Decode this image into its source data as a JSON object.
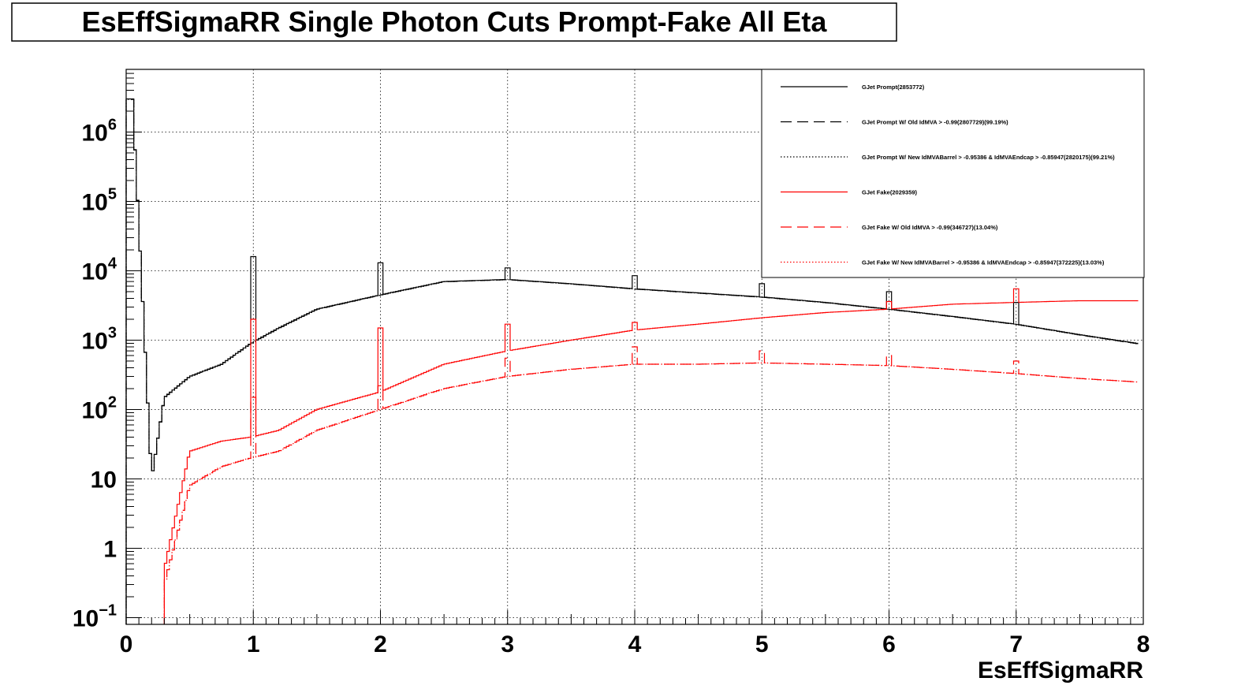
{
  "chart_data": {
    "type": "line",
    "title": "EsEffSigmaRR Single Photon Cuts Prompt-Fake All Eta",
    "xlabel": "EsEffSigmaRR",
    "ylabel": "",
    "xlim": [
      0,
      8
    ],
    "ylim": [
      0.08,
      8000000
    ],
    "y_scale": "log",
    "grid": true,
    "legend_position": "top-right",
    "x_ticks": [
      "0",
      "1",
      "2",
      "3",
      "4",
      "5",
      "6",
      "7",
      "8"
    ],
    "y_ticks": [
      {
        "value": 0.1,
        "base": "10",
        "exp": "−1"
      },
      {
        "value": 1,
        "base": "1",
        "exp": ""
      },
      {
        "value": 10,
        "base": "10",
        "exp": ""
      },
      {
        "value": 100,
        "base": "10",
        "exp": "2"
      },
      {
        "value": 1000,
        "base": "10",
        "exp": "3"
      },
      {
        "value": 10000,
        "base": "10",
        "exp": "4"
      },
      {
        "value": 100000,
        "base": "10",
        "exp": "5"
      },
      {
        "value": 1000000,
        "base": "10",
        "exp": "6"
      }
    ],
    "x": [
      0.05,
      0.2,
      0.3,
      0.5,
      0.75,
      0.98,
      1.2,
      1.5,
      2.0,
      2.5,
      3.0,
      3.5,
      4.0,
      4.5,
      5.0,
      5.5,
      6.0,
      6.5,
      7.0,
      7.5,
      7.95
    ],
    "series": [
      {
        "name": "GJet Prompt(2853772)",
        "color": "#000000",
        "dash": "solid",
        "values": [
          3000000,
          10,
          150,
          300,
          450,
          900,
          1500,
          2800,
          4500,
          7000,
          7500,
          6500,
          5500,
          4800,
          4200,
          3500,
          2800,
          2200,
          1700,
          1200,
          900
        ],
        "spikes": [
          {
            "x": 1.0,
            "y": 16000
          },
          {
            "x": 2.0,
            "y": 13000
          },
          {
            "x": 3.0,
            "y": 11000
          },
          {
            "x": 4.0,
            "y": 8500
          },
          {
            "x": 5.0,
            "y": 6500
          },
          {
            "x": 6.0,
            "y": 5000
          },
          {
            "x": 7.0,
            "y": 3500
          }
        ]
      },
      {
        "name": "GJet Prompt W/ Old IdMVA > -0.99(2807729)(99.19%)",
        "color": "#000000",
        "dash": "longdash",
        "values": [
          2950000,
          10,
          148,
          297,
          446,
          890,
          1480,
          2770,
          4460,
          6940,
          7440,
          6450,
          5450,
          4760,
          4160,
          3470,
          2780,
          2180,
          1690,
          1190,
          890
        ],
        "spikes": []
      },
      {
        "name": "GJet Prompt W/ New IdMVABarrel > -0.95386 & IdMVAEndcap > -0.85947(2820175)(99.21%)",
        "color": "#000000",
        "dash": "dotted",
        "values": [
          2960000,
          10,
          149,
          298,
          447,
          892,
          1485,
          2780,
          4470,
          6950,
          7450,
          6460,
          5460,
          4770,
          4170,
          3480,
          2785,
          2185,
          1690,
          1192,
          892
        ],
        "spikes": []
      },
      {
        "name": "GJet Fake(2029359)",
        "color": "#ff0000",
        "dash": "solid",
        "values": [
          null,
          null,
          0.5,
          25,
          35,
          40,
          50,
          100,
          180,
          450,
          700,
          1000,
          1400,
          1700,
          2100,
          2500,
          2800,
          3300,
          3500,
          3700,
          3700
        ],
        "spikes": [
          {
            "x": 1.0,
            "y": 2000
          },
          {
            "x": 2.0,
            "y": 1500
          },
          {
            "x": 3.0,
            "y": 1700
          },
          {
            "x": 4.0,
            "y": 1800
          },
          {
            "x": 6.0,
            "y": 3600
          },
          {
            "x": 7.0,
            "y": 5500
          }
        ]
      },
      {
        "name": "GJet Fake W/ Old IdMVA > -0.99(346727)(13.04%)",
        "color": "#ff0000",
        "dash": "longdash",
        "values": [
          null,
          null,
          0.3,
          8,
          15,
          20,
          25,
          50,
          100,
          200,
          300,
          380,
          450,
          450,
          470,
          450,
          430,
          380,
          330,
          280,
          250
        ],
        "spikes": [
          {
            "x": 1.0,
            "y": 150
          },
          {
            "x": 2.0,
            "y": 220
          },
          {
            "x": 3.0,
            "y": 550
          },
          {
            "x": 4.0,
            "y": 800
          },
          {
            "x": 5.0,
            "y": 700
          },
          {
            "x": 6.0,
            "y": 600
          },
          {
            "x": 7.0,
            "y": 500
          }
        ]
      },
      {
        "name": "GJet Fake W/ New IdMVABarrel > -0.95386 & IdMVAEndcap > -0.85947(372225)(13.03%)",
        "color": "#ff0000",
        "dash": "dotted",
        "values": [
          null,
          null,
          0.3,
          8,
          15,
          20,
          25,
          50,
          100,
          200,
          300,
          380,
          450,
          450,
          470,
          450,
          430,
          380,
          330,
          280,
          250
        ],
        "spikes": []
      }
    ]
  }
}
